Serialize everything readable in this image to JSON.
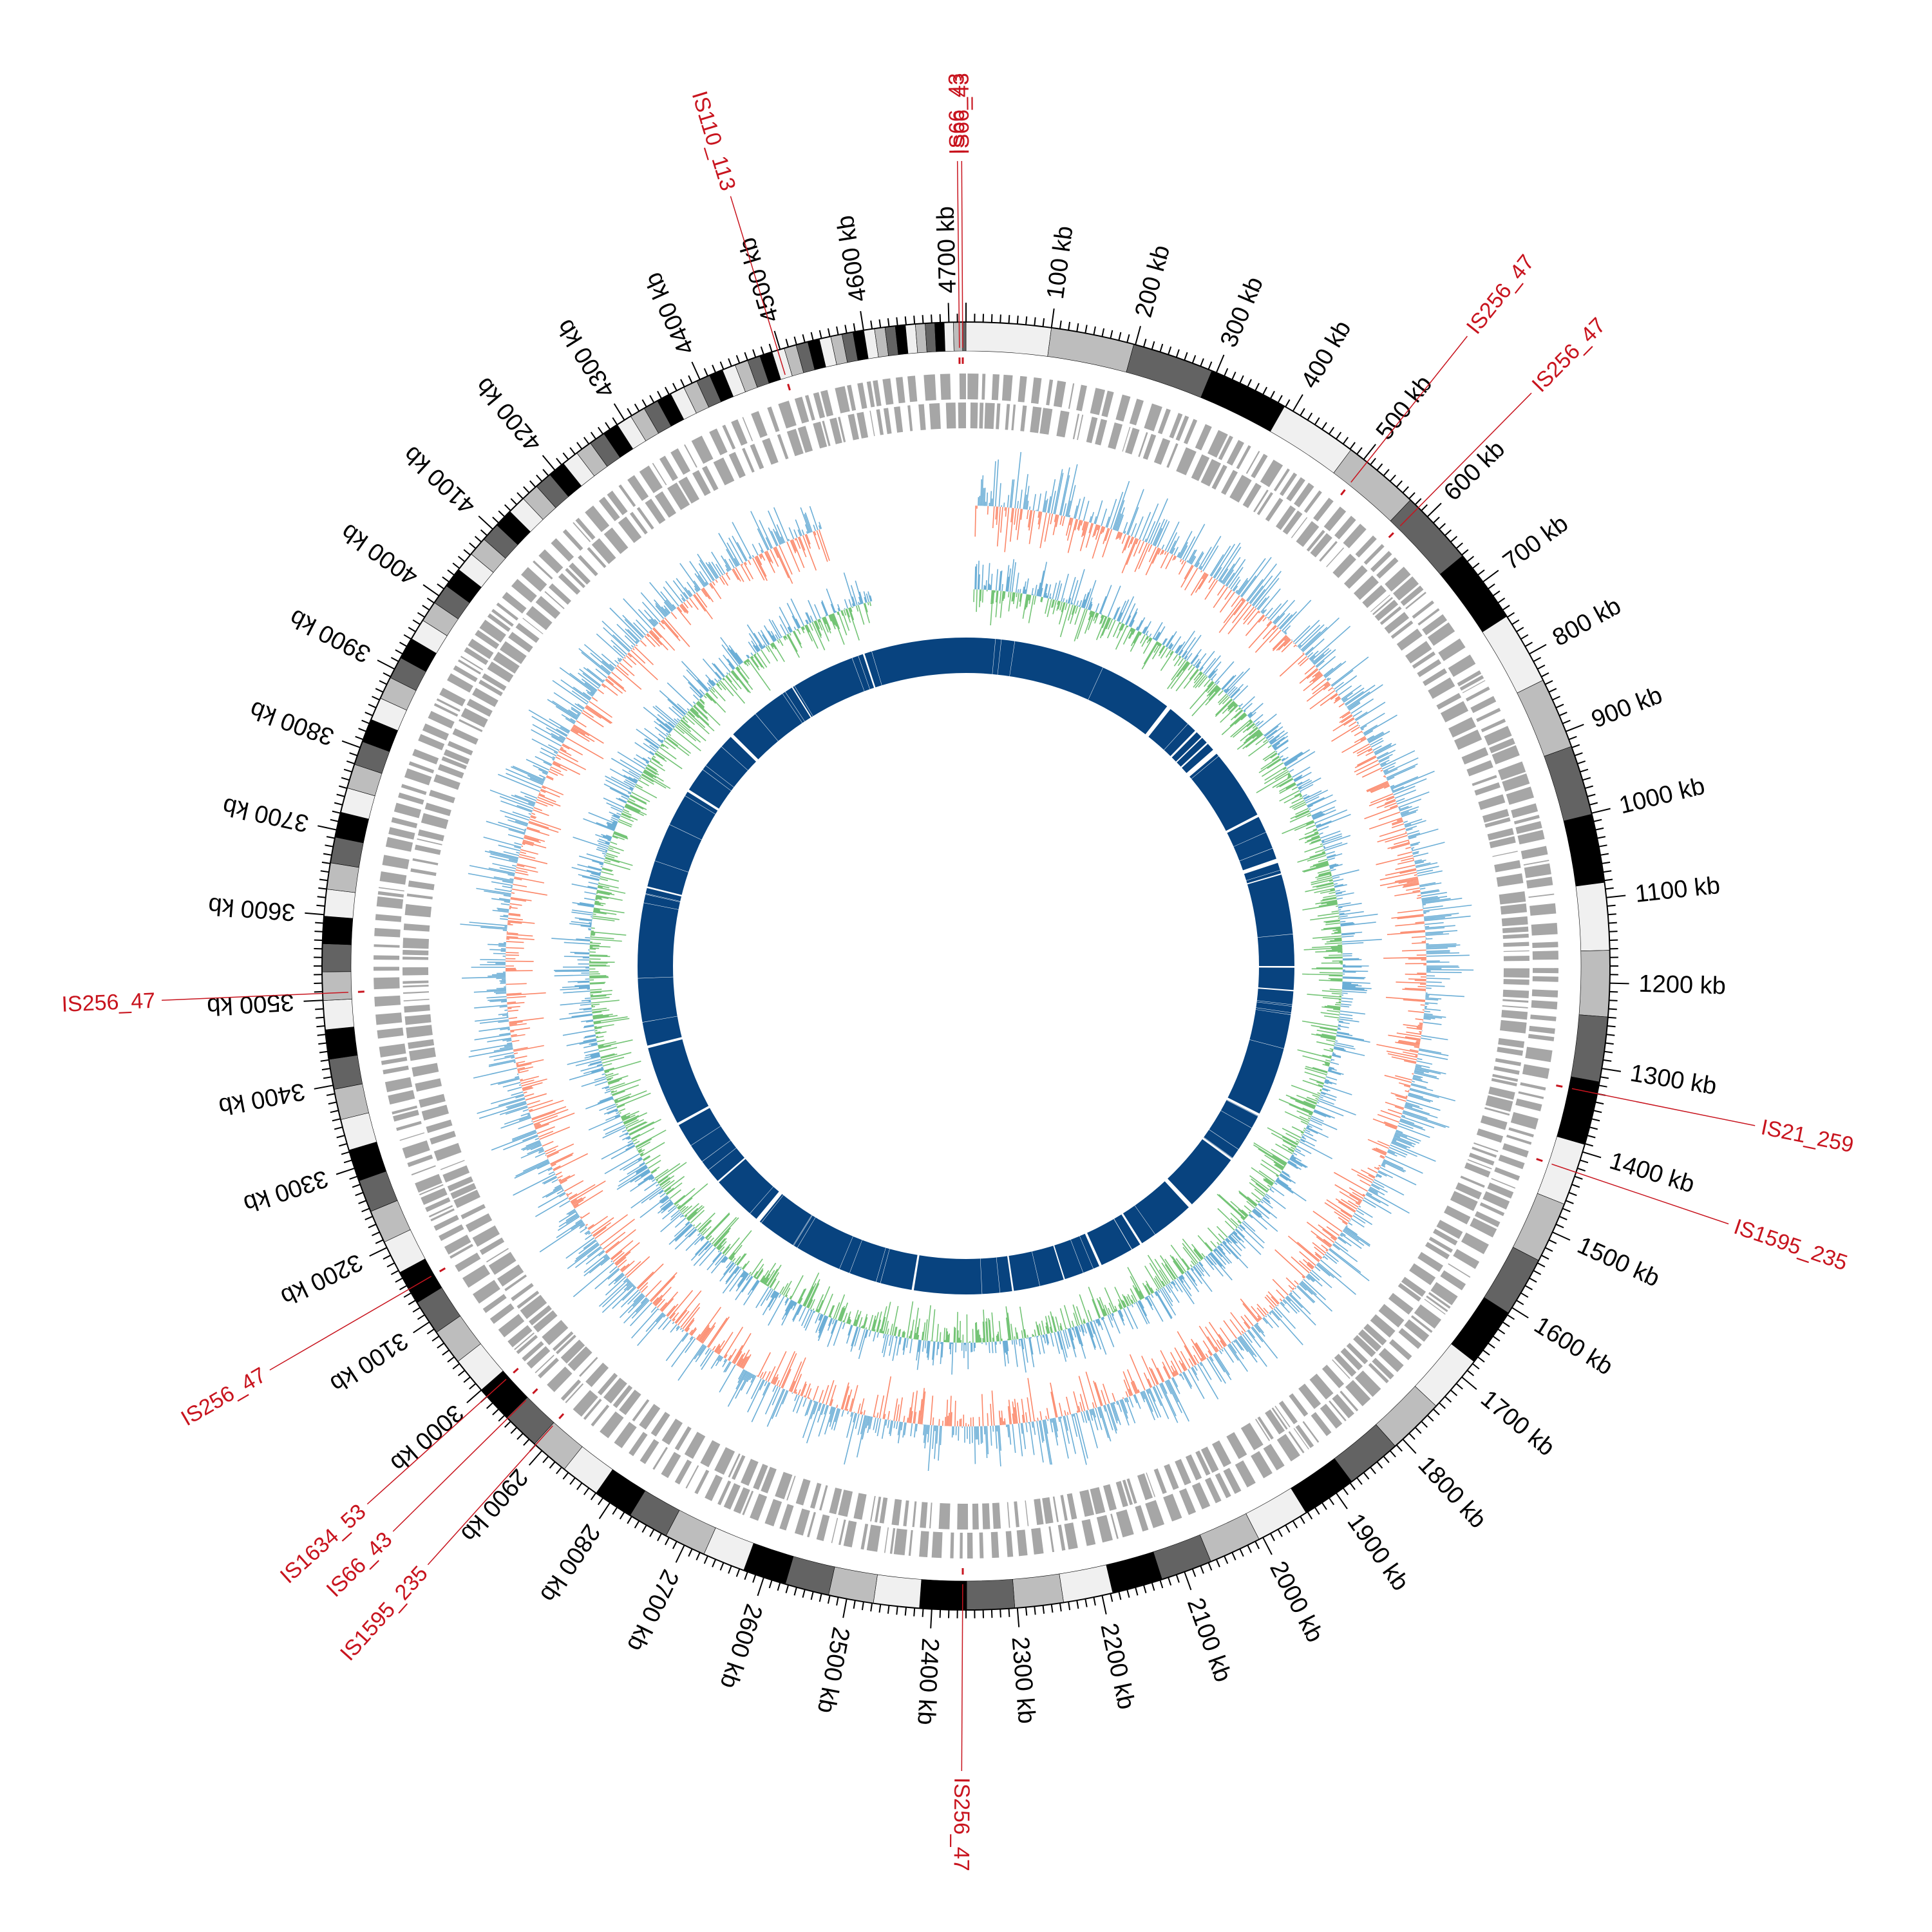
{
  "genome": {
    "size_kb": 4720,
    "tick_unit": "kb",
    "ticks_kb": [
      100,
      200,
      300,
      400,
      500,
      600,
      700,
      800,
      900,
      1000,
      1100,
      1200,
      1300,
      1400,
      1500,
      1600,
      1700,
      1800,
      1900,
      2000,
      2100,
      2200,
      2300,
      2400,
      2500,
      2600,
      2700,
      2800,
      2900,
      3000,
      3100,
      3200,
      3300,
      3400,
      3500,
      3600,
      3700,
      3800,
      3900,
      4000,
      4100,
      4200,
      4300,
      4400,
      4500,
      4600,
      4700
    ],
    "tick_labels": [
      "100 kb",
      "200 kb",
      "300 kb",
      "400 kb",
      "500 kb",
      "600 kb",
      "700 kb",
      "800 kb",
      "900 kb",
      "1000 kb",
      "1100 kb",
      "1200 kb",
      "1300 kb",
      "1400 kb",
      "1500 kb",
      "1600 kb",
      "1700 kb",
      "1800 kb",
      "1900 kb",
      "2000 kb",
      "2100 kb",
      "2200 kb",
      "2300 kb",
      "2400 kb",
      "2500 kb",
      "2600 kb",
      "2700 kb",
      "2800 kb",
      "2900 kb",
      "3000 kb",
      "3100 kb",
      "3200 kb",
      "3300 kb",
      "3400 kb",
      "3500 kb",
      "3600 kb",
      "3700 kb",
      "3800 kb",
      "3900 kb",
      "4000 kb",
      "4100 kb",
      "4200 kb",
      "4300 kb",
      "4400 kb",
      "4500 kb",
      "4600 kb",
      "4700 kb"
    ]
  },
  "insertion_sequences": [
    {
      "name": "IS66_43",
      "position_kb": 4712
    },
    {
      "name": "IS66_43",
      "position_kb": 4716
    },
    {
      "name": "IS110_113",
      "position_kb": 4497
    },
    {
      "name": "IS256_47",
      "position_kb": 505
    },
    {
      "name": "IS256_47",
      "position_kb": 585
    },
    {
      "name": "IS21_259",
      "position_kb": 1330
    },
    {
      "name": "IS1595_235",
      "position_kb": 1425
    },
    {
      "name": "IS256_47",
      "position_kb": 2364
    },
    {
      "name": "IS1595_235",
      "position_kb": 2910
    },
    {
      "name": "IS66_43",
      "position_kb": 2955
    },
    {
      "name": "IS1634_53",
      "position_kb": 2990
    },
    {
      "name": "IS256_47",
      "position_kb": 3145
    },
    {
      "name": "IS256_47",
      "position_kb": 3508
    }
  ],
  "tracks": [
    {
      "name": "karyotype",
      "description": "genome ideogram bands"
    },
    {
      "name": "genes",
      "description": "forward / reverse strand genes"
    },
    {
      "name": "gc_content",
      "colors": {
        "above": "#6baed6",
        "below": "#fb8668"
      }
    },
    {
      "name": "gc_skew",
      "colors": {
        "above": "#6baed6",
        "below": "#74c476"
      }
    },
    {
      "name": "homology",
      "color": "#08437f"
    }
  ],
  "colors": {
    "is_label": "#c8141e",
    "gene": "#a6a6a6",
    "gc_pos": "#6baed6",
    "gc_neg": "#fb8668",
    "skew_neg": "#74c476",
    "homology": "#08437f",
    "text": "#000000"
  }
}
